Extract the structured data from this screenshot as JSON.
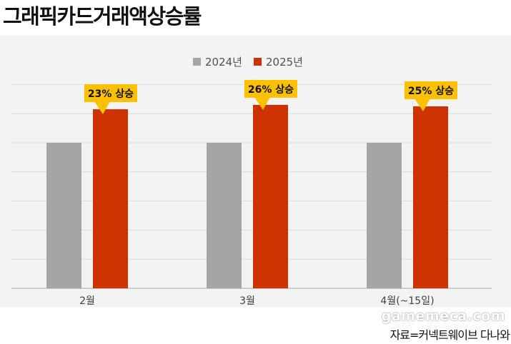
{
  "chart_data": {
    "type": "bar",
    "title": "그래픽카드거래액상승률",
    "categories": [
      "2월",
      "3월",
      "4월(~15일)"
    ],
    "series": [
      {
        "name": "2024년",
        "color": "#a5a5a5",
        "values": [
          100,
          100,
          100
        ]
      },
      {
        "name": "2025년",
        "color": "#cc3300",
        "values": [
          123,
          126,
          125
        ]
      }
    ],
    "annotations": [
      "23% 상승",
      "26% 상승",
      "25% 상승"
    ],
    "annotation_color": "#ffc000",
    "ylim": [
      0,
      150
    ],
    "grid": true,
    "legend": "top-center"
  },
  "source": "자료=커넥트웨이브 다나와",
  "watermark": "gamemeca.com"
}
